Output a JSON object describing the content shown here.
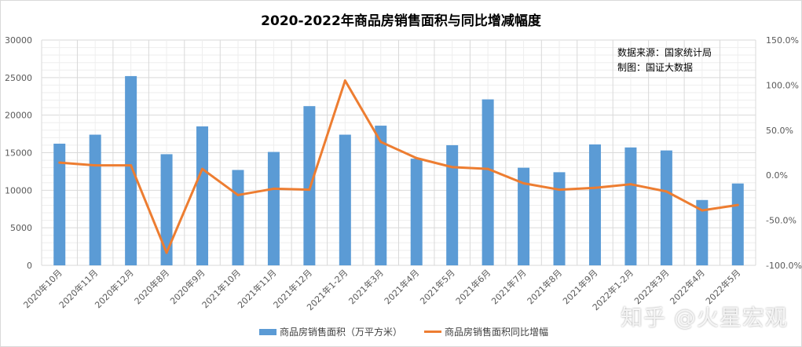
{
  "chart_data": {
    "type": "bar+line",
    "title": "2020-2022年商品房销售面积与同比增减幅度",
    "categories": [
      "2020年10月",
      "2020年11月",
      "2020年12月",
      "2020年8月",
      "2020年9月",
      "2021年10月",
      "2021年11月",
      "2021年12月",
      "2021年1-2月",
      "2021年3月",
      "2021年4月",
      "2021年5月",
      "2021年6月",
      "2021年7月",
      "2021年8月",
      "2021年9月",
      "2022年1-2月",
      "2022年3月",
      "2022年4月",
      "2022年5月"
    ],
    "series": [
      {
        "name": "商品房销售面积（万平方米）",
        "type": "bar",
        "axis": "left",
        "color": "#5b9bd5",
        "values": [
          16200,
          17400,
          25200,
          14800,
          18500,
          12700,
          15100,
          21200,
          17400,
          18600,
          14200,
          16000,
          22100,
          13000,
          12400,
          16100,
          15700,
          15300,
          8700,
          10900
        ]
      },
      {
        "name": "商品房销售面积同比增幅",
        "type": "line",
        "axis": "right",
        "color": "#ed7d31",
        "values": [
          14,
          11,
          11,
          -86,
          7,
          -22,
          -15,
          -16,
          105,
          37,
          19,
          9,
          7,
          -9,
          -16,
          -14,
          -10,
          -18,
          -39,
          -33
        ]
      }
    ],
    "ylim_left": [
      0,
      30000
    ],
    "yticks_left": [
      "0",
      "5000",
      "10000",
      "15000",
      "20000",
      "25000",
      "30000"
    ],
    "ylim_right": [
      -100,
      150
    ],
    "yticks_right": [
      "-100.0%",
      "-50.0%",
      "0.0%",
      "50.0%",
      "100.0%",
      "150.0%"
    ],
    "grid": true,
    "legend": "bottom"
  },
  "notes": {
    "source": "数据来源：国家统计局",
    "author": "制图：国证大数据"
  },
  "watermark": "知乎 @火星宏观"
}
